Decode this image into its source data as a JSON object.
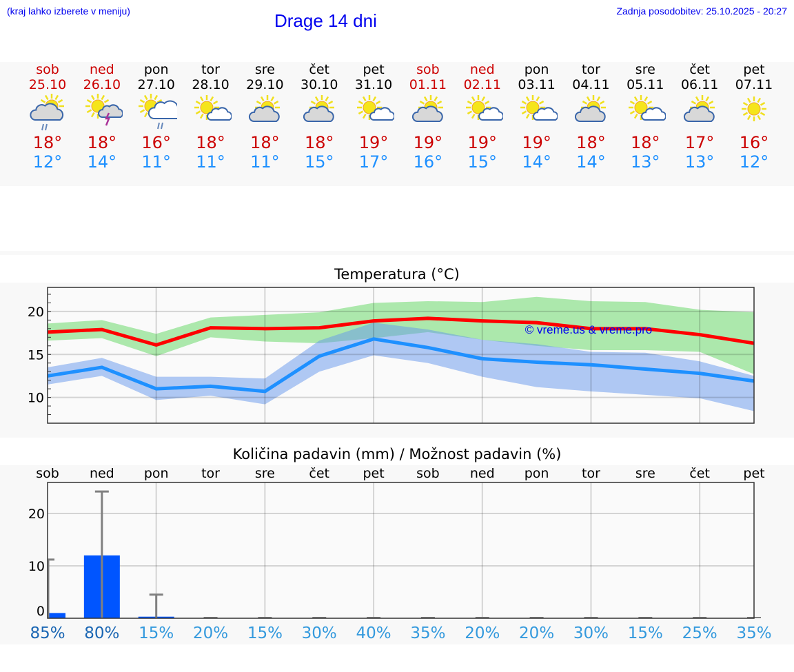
{
  "header": {
    "hint": "(kraj lahko izberete v meniju)",
    "title": "Drage 14 dni",
    "updated": "Zadnja posodobitev: 25.10.2025 - 20:27"
  },
  "colors": {
    "max": "#cc0000",
    "min": "#1e90ff",
    "weekend": "#cc0000",
    "bar": "#0055ff"
  },
  "days": [
    {
      "name": "sob",
      "date": "25.10",
      "icon": "cloudy-sun-rain-icon",
      "max": "18°",
      "min": "12°",
      "weekend": true,
      "pop": "85%"
    },
    {
      "name": "ned",
      "date": "26.10",
      "icon": "sun-cloud-thunder-icon",
      "max": "18°",
      "min": "14°",
      "weekend": true,
      "pop": "80%"
    },
    {
      "name": "pon",
      "date": "27.10",
      "icon": "sun-cloud-rain-icon",
      "max": "16°",
      "min": "11°",
      "weekend": false,
      "pop": "15%"
    },
    {
      "name": "tor",
      "date": "28.10",
      "icon": "sun-small-cloud-icon",
      "max": "18°",
      "min": "11°",
      "weekend": false,
      "pop": "20%"
    },
    {
      "name": "sre",
      "date": "29.10",
      "icon": "sun-gray-cloud-icon",
      "max": "18°",
      "min": "11°",
      "weekend": false,
      "pop": "15%"
    },
    {
      "name": "čet",
      "date": "30.10",
      "icon": "sun-gray-cloud-icon",
      "max": "18°",
      "min": "15°",
      "weekend": false,
      "pop": "30%"
    },
    {
      "name": "pet",
      "date": "31.10",
      "icon": "sun-small-cloud-icon",
      "max": "19°",
      "min": "17°",
      "weekend": false,
      "pop": "40%"
    },
    {
      "name": "sob",
      "date": "01.11",
      "icon": "sun-gray-cloud-icon",
      "max": "19°",
      "min": "16°",
      "weekend": true,
      "pop": "35%"
    },
    {
      "name": "ned",
      "date": "02.11",
      "icon": "sun-small-cloud-icon",
      "max": "19°",
      "min": "15°",
      "weekend": true,
      "pop": "20%"
    },
    {
      "name": "pon",
      "date": "03.11",
      "icon": "sun-small-cloud-icon",
      "max": "19°",
      "min": "14°",
      "weekend": false,
      "pop": "20%"
    },
    {
      "name": "tor",
      "date": "04.11",
      "icon": "sun-gray-cloud-icon",
      "max": "18°",
      "min": "14°",
      "weekend": false,
      "pop": "30%"
    },
    {
      "name": "sre",
      "date": "05.11",
      "icon": "sun-small-cloud-icon",
      "max": "18°",
      "min": "13°",
      "weekend": false,
      "pop": "15%"
    },
    {
      "name": "čet",
      "date": "06.11",
      "icon": "sun-gray-cloud-icon",
      "max": "17°",
      "min": "13°",
      "weekend": false,
      "pop": "25%"
    },
    {
      "name": "pet",
      "date": "07.11",
      "icon": "sun-icon",
      "max": "16°",
      "min": "12°",
      "weekend": false,
      "pop": "35%"
    }
  ],
  "chart_data": [
    {
      "type": "line",
      "title": "Temperatura (°C)",
      "ylim": [
        7,
        22.8
      ],
      "yticks": [
        10,
        15,
        20
      ],
      "grid": true,
      "watermark": "© vreme.us & vreme.pro",
      "series": [
        {
          "name": "max",
          "values": [
            17.6,
            17.9,
            16.1,
            18.1,
            18.0,
            18.1,
            18.9,
            19.2,
            18.9,
            18.7,
            18.0,
            18.0,
            17.3,
            16.3
          ],
          "band_upper": [
            18.6,
            19.0,
            17.4,
            19.3,
            19.6,
            19.9,
            21.0,
            21.2,
            21.1,
            21.7,
            21.2,
            21.1,
            20.2,
            19.9
          ],
          "band_lower": [
            16.6,
            16.9,
            14.8,
            17.0,
            16.5,
            16.3,
            16.9,
            17.6,
            16.7,
            16.0,
            15.5,
            15.5,
            15.3,
            12.7
          ]
        },
        {
          "name": "min",
          "values": [
            12.5,
            13.5,
            11.0,
            11.3,
            10.7,
            14.8,
            16.8,
            15.8,
            14.5,
            14.1,
            13.8,
            13.3,
            12.8,
            11.9
          ],
          "band_upper": [
            13.5,
            14.6,
            12.4,
            12.4,
            12.2,
            16.6,
            18.7,
            17.9,
            16.7,
            16.2,
            15.3,
            15.2,
            14.2,
            12.5
          ],
          "band_lower": [
            11.5,
            12.5,
            9.7,
            10.2,
            9.2,
            13.0,
            14.9,
            14.0,
            12.4,
            11.2,
            10.7,
            10.3,
            9.9,
            8.4
          ]
        }
      ]
    },
    {
      "type": "bar",
      "title": "Količina padavin (mm) / Možnost padavin (%)",
      "ylim": [
        -1.5,
        26
      ],
      "yticks": [
        0,
        10,
        20
      ],
      "grid": true,
      "categories": [
        "sob",
        "ned",
        "pon",
        "tor",
        "sre",
        "čet",
        "pet",
        "sob",
        "ned",
        "pon",
        "tor",
        "sre",
        "čet",
        "pet"
      ],
      "values": [
        1.0,
        12.0,
        0.3,
        0,
        0,
        0,
        0,
        0,
        0,
        0,
        0,
        0,
        0,
        0
      ],
      "error_upper": [
        11.2,
        24.2,
        4.5,
        0,
        0,
        0,
        0,
        0,
        0,
        0,
        0,
        0,
        0,
        0
      ],
      "percent": [
        "85%",
        "80%",
        "15%",
        "20%",
        "15%",
        "30%",
        "40%",
        "35%",
        "20%",
        "20%",
        "30%",
        "15%",
        "25%",
        "35%"
      ]
    }
  ]
}
